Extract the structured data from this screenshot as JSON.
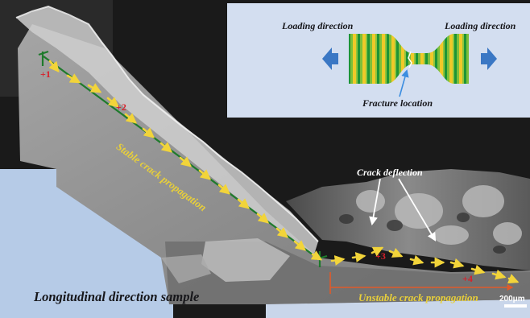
{
  "labels": {
    "loading_left": "Loading direction",
    "loading_right": "Loading direction",
    "fracture_location": "Fracture location",
    "crack_deflection": "Crack deflection",
    "stable": "Stable crack propagation",
    "unstable": "Unstable crack propagation",
    "sample": "Longitudinal direction sample",
    "scale_bar": "200μm"
  },
  "markers": [
    "+1",
    "+2",
    "+3",
    "+4"
  ],
  "colors": {
    "stable_line": "#1e7a2c",
    "unstable_line": "#e05a2a",
    "arrow_yellow": "#f2d43a",
    "loading_arrow": "#3a77c4",
    "panel_blue": "#b6cbe7",
    "fracture_pointer": "#3b8de0"
  }
}
